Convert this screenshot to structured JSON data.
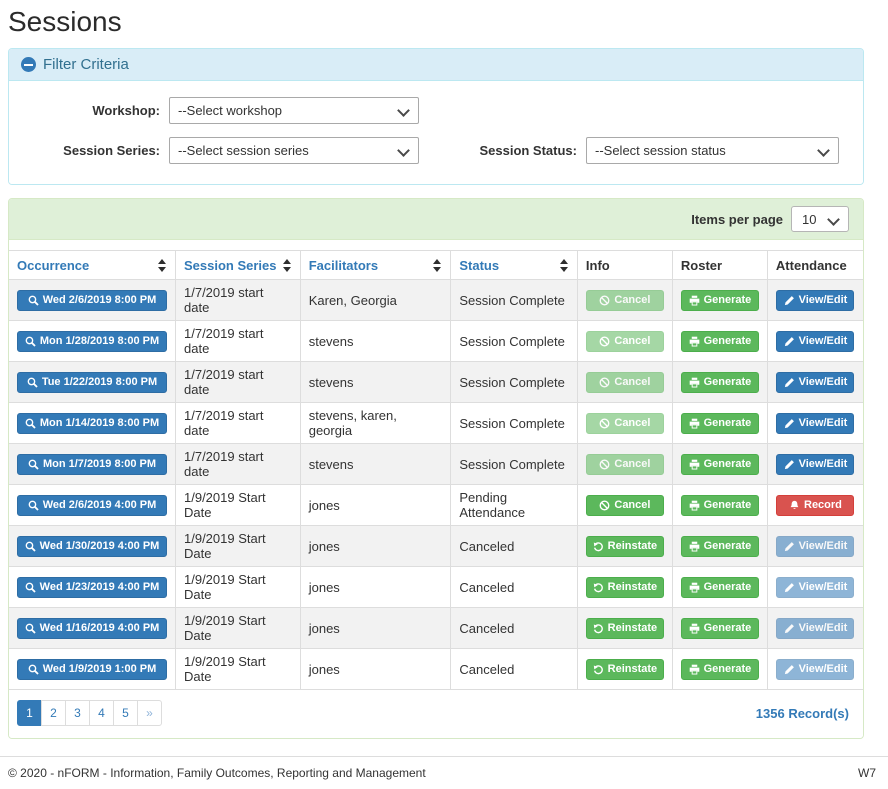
{
  "page": {
    "title": "Sessions"
  },
  "filter": {
    "title": "Filter Criteria",
    "fields": {
      "workshop": {
        "label": "Workshop:",
        "value": "--Select workshop"
      },
      "session_series": {
        "label": "Session Series:",
        "value": "--Select session series"
      },
      "session_status": {
        "label": "Session Status:",
        "value": "--Select session status"
      }
    }
  },
  "table": {
    "items_per_page_label": "Items per page",
    "items_per_page_value": "10",
    "columns": [
      {
        "label": "Occurrence",
        "sortable": true
      },
      {
        "label": "Session Series",
        "sortable": true
      },
      {
        "label": "Facilitators",
        "sortable": true
      },
      {
        "label": "Status",
        "sortable": true
      },
      {
        "label": "Info",
        "sortable": false
      },
      {
        "label": "Roster",
        "sortable": false
      },
      {
        "label": "Attendance",
        "sortable": false
      }
    ],
    "rows": [
      {
        "occurrence": "Wed 2/6/2019 8:00 PM",
        "series": "1/7/2019 start date",
        "facilitators": "Karen, Georgia",
        "status": "Session Complete",
        "info": {
          "label": "Cancel",
          "icon": "ban-icon",
          "variant": "success",
          "disabled": true
        },
        "roster": {
          "label": "Generate",
          "icon": "printer-icon",
          "variant": "success",
          "disabled": false
        },
        "attendance": {
          "label": "View/Edit",
          "icon": "pencil-icon",
          "variant": "primary",
          "disabled": false
        }
      },
      {
        "occurrence": "Mon 1/28/2019 8:00 PM",
        "series": "1/7/2019 start date",
        "facilitators": "stevens",
        "status": "Session Complete",
        "info": {
          "label": "Cancel",
          "icon": "ban-icon",
          "variant": "success",
          "disabled": true
        },
        "roster": {
          "label": "Generate",
          "icon": "printer-icon",
          "variant": "success",
          "disabled": false
        },
        "attendance": {
          "label": "View/Edit",
          "icon": "pencil-icon",
          "variant": "primary",
          "disabled": false
        }
      },
      {
        "occurrence": "Tue 1/22/2019 8:00 PM",
        "series": "1/7/2019 start date",
        "facilitators": "stevens",
        "status": "Session Complete",
        "info": {
          "label": "Cancel",
          "icon": "ban-icon",
          "variant": "success",
          "disabled": true
        },
        "roster": {
          "label": "Generate",
          "icon": "printer-icon",
          "variant": "success",
          "disabled": false
        },
        "attendance": {
          "label": "View/Edit",
          "icon": "pencil-icon",
          "variant": "primary",
          "disabled": false
        }
      },
      {
        "occurrence": "Mon 1/14/2019 8:00 PM",
        "series": "1/7/2019 start date",
        "facilitators": "stevens, karen, georgia",
        "status": "Session Complete",
        "info": {
          "label": "Cancel",
          "icon": "ban-icon",
          "variant": "success",
          "disabled": true
        },
        "roster": {
          "label": "Generate",
          "icon": "printer-icon",
          "variant": "success",
          "disabled": false
        },
        "attendance": {
          "label": "View/Edit",
          "icon": "pencil-icon",
          "variant": "primary",
          "disabled": false
        }
      },
      {
        "occurrence": "Mon 1/7/2019 8:00 PM",
        "series": "1/7/2019 start date",
        "facilitators": "stevens",
        "status": "Session Complete",
        "info": {
          "label": "Cancel",
          "icon": "ban-icon",
          "variant": "success",
          "disabled": true
        },
        "roster": {
          "label": "Generate",
          "icon": "printer-icon",
          "variant": "success",
          "disabled": false
        },
        "attendance": {
          "label": "View/Edit",
          "icon": "pencil-icon",
          "variant": "primary",
          "disabled": false
        }
      },
      {
        "occurrence": "Wed 2/6/2019 4:00 PM",
        "series": "1/9/2019 Start Date",
        "facilitators": "jones",
        "status": "Pending Attendance",
        "info": {
          "label": "Cancel",
          "icon": "ban-icon",
          "variant": "success",
          "disabled": false
        },
        "roster": {
          "label": "Generate",
          "icon": "printer-icon",
          "variant": "success",
          "disabled": false
        },
        "attendance": {
          "label": "Record",
          "icon": "bell-icon",
          "variant": "danger",
          "disabled": false
        }
      },
      {
        "occurrence": "Wed 1/30/2019 4:00 PM",
        "series": "1/9/2019 Start Date",
        "facilitators": "jones",
        "status": "Canceled",
        "info": {
          "label": "Reinstate",
          "icon": "undo-icon",
          "variant": "success",
          "disabled": false
        },
        "roster": {
          "label": "Generate",
          "icon": "printer-icon",
          "variant": "success",
          "disabled": false
        },
        "attendance": {
          "label": "View/Edit",
          "icon": "pencil-icon",
          "variant": "primary",
          "disabled": true
        }
      },
      {
        "occurrence": "Wed 1/23/2019 4:00 PM",
        "series": "1/9/2019 Start Date",
        "facilitators": "jones",
        "status": "Canceled",
        "info": {
          "label": "Reinstate",
          "icon": "undo-icon",
          "variant": "success",
          "disabled": false
        },
        "roster": {
          "label": "Generate",
          "icon": "printer-icon",
          "variant": "success",
          "disabled": false
        },
        "attendance": {
          "label": "View/Edit",
          "icon": "pencil-icon",
          "variant": "primary",
          "disabled": true
        }
      },
      {
        "occurrence": "Wed 1/16/2019 4:00 PM",
        "series": "1/9/2019 Start Date",
        "facilitators": "jones",
        "status": "Canceled",
        "info": {
          "label": "Reinstate",
          "icon": "undo-icon",
          "variant": "success",
          "disabled": false
        },
        "roster": {
          "label": "Generate",
          "icon": "printer-icon",
          "variant": "success",
          "disabled": false
        },
        "attendance": {
          "label": "View/Edit",
          "icon": "pencil-icon",
          "variant": "primary",
          "disabled": true
        }
      },
      {
        "occurrence": "Wed 1/9/2019 1:00 PM",
        "series": "1/9/2019 Start Date",
        "facilitators": "jones",
        "status": "Canceled",
        "info": {
          "label": "Reinstate",
          "icon": "undo-icon",
          "variant": "success",
          "disabled": false
        },
        "roster": {
          "label": "Generate",
          "icon": "printer-icon",
          "variant": "success",
          "disabled": false
        },
        "attendance": {
          "label": "View/Edit",
          "icon": "pencil-icon",
          "variant": "primary",
          "disabled": true
        }
      }
    ],
    "occurrence_icon": "search-icon",
    "record_count": "1356 Record(s)"
  },
  "pagination": {
    "pages": [
      "1",
      "2",
      "3",
      "4",
      "5",
      "»"
    ],
    "active_index": 0
  },
  "footer": {
    "copyright": "© 2020 - nFORM - Information, Family Outcomes, Reporting and Management",
    "environment": "W7"
  }
}
